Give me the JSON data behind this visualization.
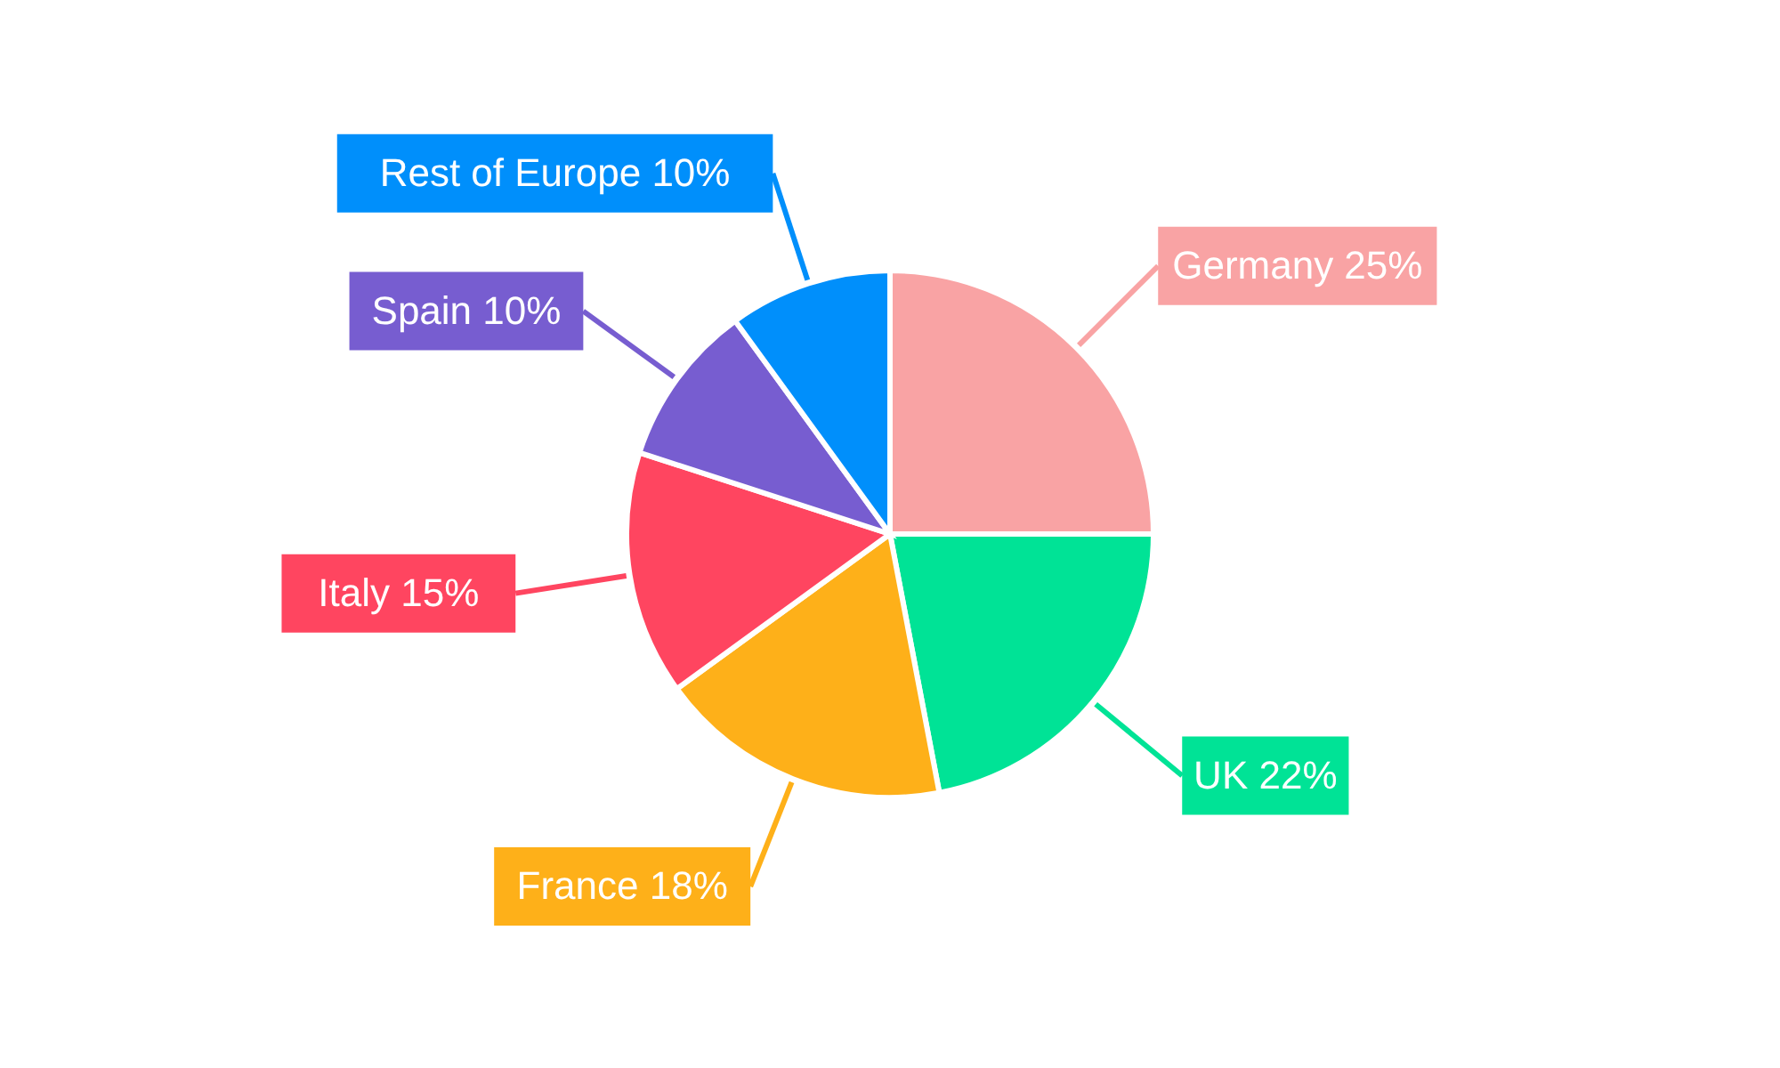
{
  "chart_data": {
    "type": "pie",
    "categories": [
      "Germany",
      "UK",
      "France",
      "Italy",
      "Spain",
      "Rest of Europe"
    ],
    "values": [
      25,
      22,
      18,
      15,
      10,
      10
    ],
    "value_labels": [
      "25%",
      "22%",
      "18%",
      "15%",
      "10%",
      "10%"
    ],
    "colors": [
      "#f9a3a4",
      "#00e396",
      "#feb019",
      "#ff4560",
      "#775dd0",
      "#008ffb"
    ]
  }
}
